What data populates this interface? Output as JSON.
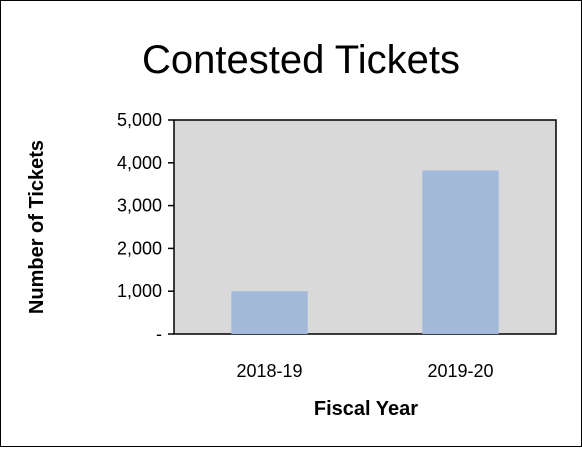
{
  "chart_data": {
    "type": "bar",
    "title": "Contested Tickets",
    "xlabel": "Fiscal Year",
    "ylabel": "Number of Tickets",
    "categories": [
      "2018-19",
      "2019-20"
    ],
    "values": [
      1000,
      3820
    ],
    "ylim": [
      0,
      5000
    ],
    "yticks": [
      0,
      1000,
      2000,
      3000,
      4000,
      5000
    ],
    "ytick_labels": [
      "-",
      "1,000",
      "2,000",
      "3,000",
      "4,000",
      "5,000"
    ],
    "grid": false,
    "legend": "none",
    "colors": {
      "bar": "#a3b9da",
      "plot_background": "#d9d9d9",
      "axis": "#000000"
    }
  }
}
